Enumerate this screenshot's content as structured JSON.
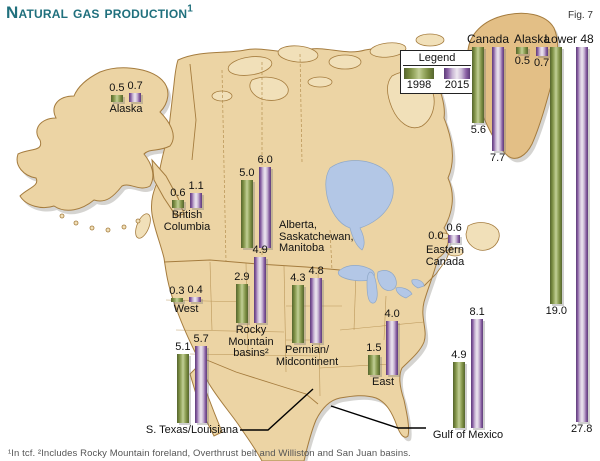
{
  "header": {
    "title": "Natural gas production",
    "title_sup": "1",
    "fig_label": "Fig. 7"
  },
  "legend": {
    "title": "Legend",
    "series": [
      {
        "label": "1998"
      },
      {
        "label": "2015"
      }
    ]
  },
  "footnote": "¹In tcf.  ²Includes Rocky Mountain foreland, Overthrust belt and Williston and San Juan basins.",
  "chart_data": {
    "type": "bar",
    "units": "trillion cubic feet (tcf)",
    "series": [
      "1998",
      "2015"
    ],
    "series_colors": {
      "1998": "#6d7f45",
      "2015": "#8a60a4"
    },
    "groups": [
      {
        "region": "Alaska (map)",
        "label": "Alaska",
        "v1998": "0.5",
        "v2015": "0.7"
      },
      {
        "region": "British Columbia",
        "label": "British\nColumbia",
        "v1998": "0.6",
        "v2015": "1.1"
      },
      {
        "region": "Alberta, Saskatchewan, Manitoba",
        "label": "Alberta,\nSaskatchewan,\nManitoba",
        "v1998": "5.0",
        "v2015": "6.0"
      },
      {
        "region": "Eastern Canada",
        "label": "Eastern\nCanada",
        "v1998": "0.0",
        "v2015": "0.6"
      },
      {
        "region": "West",
        "label": "West",
        "v1998": "0.3",
        "v2015": "0.4"
      },
      {
        "region": "Rocky Mountain basins",
        "label": "Rocky\nMountain\nbasins²",
        "v1998": "2.9",
        "v2015": "4.9"
      },
      {
        "region": "Permian/Midcontinent",
        "label": "Permian/\nMidcontinent",
        "v1998": "4.3",
        "v2015": "4.8"
      },
      {
        "region": "East",
        "label": "East",
        "v1998": "1.5",
        "v2015": "4.0"
      },
      {
        "region": "S. Texas/Louisiana",
        "label": "S. Texas/Louisiana",
        "v1998": "5.1",
        "v2015": "5.7"
      },
      {
        "region": "Gulf of Mexico",
        "label": "Gulf of Mexico",
        "v1998": "4.9",
        "v2015": "8.1"
      },
      {
        "region": "Canada (total)",
        "label": "Canada",
        "v1998": "5.6",
        "v2015": "7.7"
      },
      {
        "region": "Alaska (total)",
        "label": "Alaska",
        "v1998": "0.5",
        "v2015": "0.7"
      },
      {
        "region": "Lower 48 (total)",
        "label": "Lower 48",
        "v1998": "19.0",
        "v2015": "27.8"
      }
    ]
  }
}
